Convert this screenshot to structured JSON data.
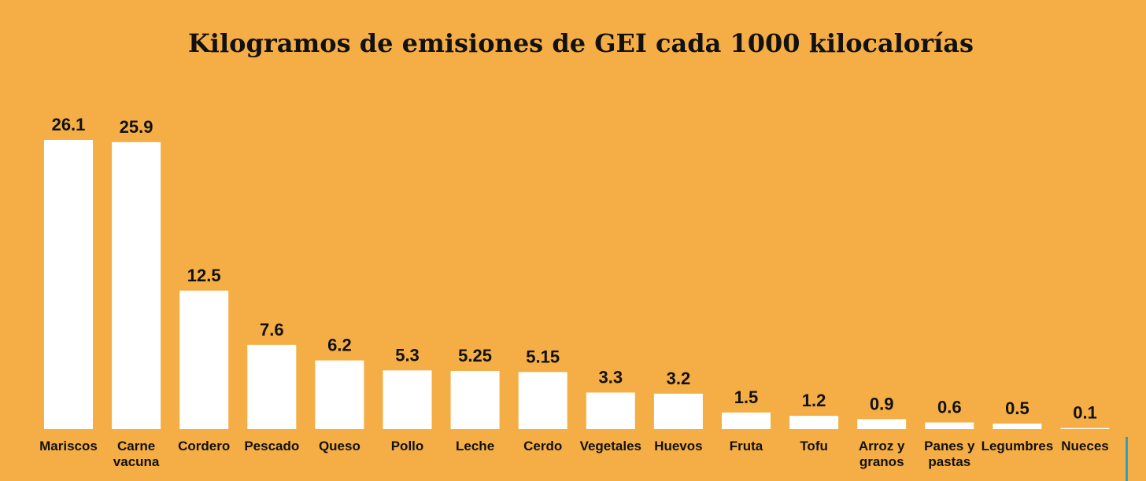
{
  "colors": {
    "background": "#F4AE45",
    "bar": "#FFFFFF",
    "text": "#111111",
    "accent": "#2E9FC9"
  },
  "chart_data": {
    "type": "bar",
    "title": "Kilogramos de emisiones de GEI cada 1000 kilocalorías",
    "xlabel": "",
    "ylabel": "",
    "ylim": [
      0,
      26.1
    ],
    "grid": false,
    "categories": [
      "Mariscos",
      "Carne vacuna",
      "Cordero",
      "Pescado",
      "Queso",
      "Pollo",
      "Leche",
      "Cerdo",
      "Vegetales",
      "Huevos",
      "Fruta",
      "Tofu",
      "Arroz y granos",
      "Panes y pastas",
      "Legumbres",
      "Nueces"
    ],
    "category_lines": [
      [
        "Mariscos"
      ],
      [
        "Carne",
        "vacuna"
      ],
      [
        "Cordero"
      ],
      [
        "Pescado"
      ],
      [
        "Queso"
      ],
      [
        "Pollo"
      ],
      [
        "Leche"
      ],
      [
        "Cerdo"
      ],
      [
        "Vegetales"
      ],
      [
        "Huevos"
      ],
      [
        "Fruta"
      ],
      [
        "Tofu"
      ],
      [
        "Arroz y",
        "granos"
      ],
      [
        "Panes y",
        "pastas"
      ],
      [
        "Legumbres"
      ],
      [
        "Nueces"
      ]
    ],
    "values": [
      26.1,
      25.9,
      12.5,
      7.6,
      6.2,
      5.3,
      5.25,
      5.15,
      3.3,
      3.2,
      1.5,
      1.2,
      0.9,
      0.6,
      0.5,
      0.1
    ],
    "value_labels": [
      "26.1",
      "25.9",
      "12.5",
      "7.6",
      "6.2",
      "5.3",
      "5.25",
      "5.15",
      "3.3",
      "3.2",
      "1.5",
      "1.2",
      "0.9",
      "0.6",
      "0.5",
      "0.1"
    ]
  }
}
